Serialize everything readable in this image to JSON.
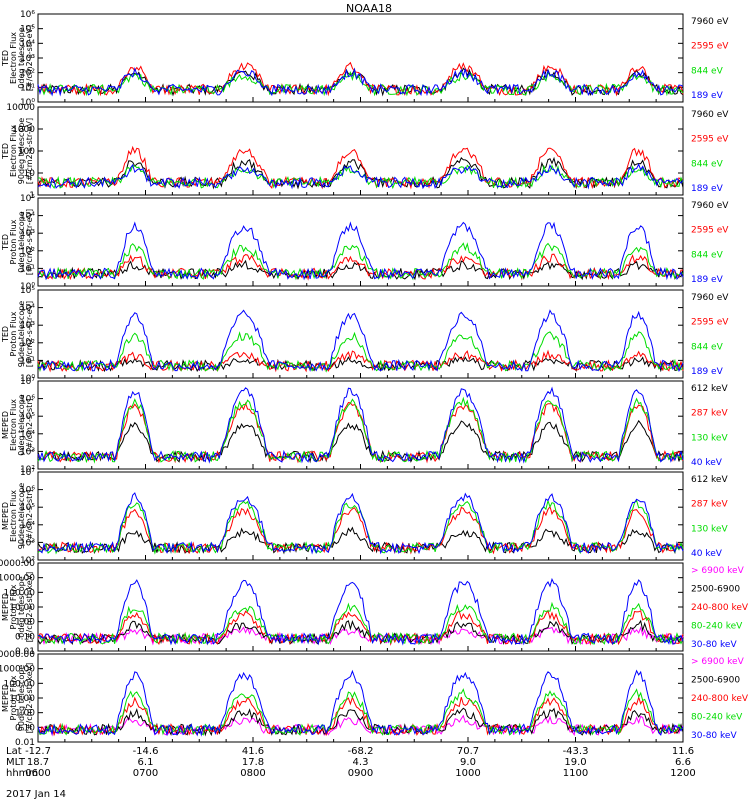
{
  "title": "NOAA18",
  "date_label": "2017 Jan 14",
  "footer": {
    "row_labels": [
      "Lat",
      "MLT",
      "hhmm"
    ],
    "lat": [
      "-12.7",
      "-14.6",
      "41.6",
      "-68.2",
      "70.7",
      "-43.3",
      "11.6"
    ],
    "mlt": [
      "18.7",
      "6.1",
      "17.8",
      "4.3",
      "9.0",
      "19.0",
      "6.6"
    ],
    "hhmm": [
      "0600",
      "0700",
      "0800",
      "0900",
      "1000",
      "1100",
      "1200"
    ]
  },
  "colors": {
    "black": "#000000",
    "red": "#ff0000",
    "green": "#00dd00",
    "blue": "#0000ff",
    "magenta": "#ff00ff"
  },
  "chart_data": [
    {
      "type": "line",
      "ylabel": [
        "TED",
        "Electron Flux",
        "0deg telescope",
        "[#/cm2-s-str-eV]"
      ],
      "ylim": [
        1,
        1000000
      ],
      "yscale": "log",
      "yticks": [
        "10⁰",
        "10¹",
        "10²",
        "10³",
        "10⁴",
        "10⁵",
        "10⁶"
      ],
      "series": [
        {
          "name": "7960 eV",
          "color": "black",
          "peak": 2.0
        },
        {
          "name": "2595 eV",
          "color": "red",
          "peak": 2.4
        },
        {
          "name": "844 eV",
          "color": "green",
          "peak": 1.8
        },
        {
          "name": "189 eV",
          "color": "blue",
          "peak": 2.0
        }
      ]
    },
    {
      "type": "line",
      "ylabel": [
        "TED",
        "Electron Flux",
        "90deg telescope",
        "[#/cm2-s-str-eV]"
      ],
      "ylim": [
        1,
        10000
      ],
      "yscale": "log",
      "yticks": [
        "1",
        "10",
        "100",
        "1000",
        "10000"
      ],
      "series": [
        {
          "name": "7960 eV",
          "color": "black",
          "peak": 1.5
        },
        {
          "name": "2595 eV",
          "color": "red",
          "peak": 2.0
        },
        {
          "name": "844 eV",
          "color": "green",
          "peak": 1.2
        },
        {
          "name": "189 eV",
          "color": "blue",
          "peak": 1.2
        }
      ]
    },
    {
      "type": "line",
      "ylabel": [
        "TED",
        "Proton Flux",
        "0deg telescope",
        "[#/cm2-s-str-eV]"
      ],
      "ylim": [
        1,
        100000
      ],
      "yscale": "log",
      "yticks": [
        "10⁰",
        "10¹",
        "10²",
        "10³",
        "10⁴",
        "10⁵"
      ],
      "series": [
        {
          "name": "7960 eV",
          "color": "black",
          "peak": 1.2
        },
        {
          "name": "2595 eV",
          "color": "red",
          "peak": 1.6
        },
        {
          "name": "844 eV",
          "color": "green",
          "peak": 2.2
        },
        {
          "name": "189 eV",
          "color": "blue",
          "peak": 3.4
        }
      ]
    },
    {
      "type": "line",
      "ylabel": [
        "TED",
        "Proton Flux",
        "90deg telescope",
        "[#/cm2-s-str-eV]"
      ],
      "ylim": [
        1,
        100000
      ],
      "yscale": "log",
      "yticks": [
        "10⁰",
        "10¹",
        "10²",
        "10³",
        "10⁴",
        "10⁵"
      ],
      "series": [
        {
          "name": "7960 eV",
          "color": "black",
          "peak": 1.0
        },
        {
          "name": "2595 eV",
          "color": "red",
          "peak": 1.3
        },
        {
          "name": "844 eV",
          "color": "green",
          "peak": 2.4
        },
        {
          "name": "189 eV",
          "color": "blue",
          "peak": 3.6
        }
      ]
    },
    {
      "type": "line",
      "ylabel": [
        "MEPED",
        "Electron Flux",
        "0deg telescope",
        "[#/cm2-s-str]"
      ],
      "ylim": [
        100,
        10000000
      ],
      "yscale": "log",
      "yticks": [
        "10²",
        "10³",
        "10⁴",
        "10⁵",
        "10⁶",
        "10⁷"
      ],
      "series": [
        {
          "name": "612 keV",
          "color": "black",
          "peak": 4.5
        },
        {
          "name": "287 keV",
          "color": "red",
          "peak": 5.6
        },
        {
          "name": "130 keV",
          "color": "green",
          "peak": 5.8
        },
        {
          "name": "40 keV",
          "color": "blue",
          "peak": 6.4
        }
      ]
    },
    {
      "type": "line",
      "ylabel": [
        "MEPED",
        "Electron Flux",
        "90deg telescope",
        "[#/cm2-s-str]"
      ],
      "ylim": [
        100,
        10000000
      ],
      "yscale": "log",
      "yticks": [
        "10²",
        "10³",
        "10⁴",
        "10⁵",
        "10⁶",
        "10⁷"
      ],
      "series": [
        {
          "name": "612 keV",
          "color": "black",
          "peak": 3.6
        },
        {
          "name": "287 keV",
          "color": "red",
          "peak": 4.8
        },
        {
          "name": "130 keV",
          "color": "green",
          "peak": 5.2
        },
        {
          "name": "40 keV",
          "color": "blue",
          "peak": 5.6
        }
      ]
    },
    {
      "type": "line",
      "ylabel": [
        "MEPED",
        "Proton Flux",
        "0deg telescope",
        "[#/cm2-s-str-keV]"
      ],
      "ylim": [
        0.01,
        10000
      ],
      "yscale": "log",
      "yticks": [
        "0.01",
        "0.10",
        "1.00",
        "10.00",
        "100.00",
        "1000.00",
        "10000.00"
      ],
      "series": [
        {
          "name": "> 6900 keV",
          "color": "magenta",
          "peak": -0.6
        },
        {
          "name": "2500-6900",
          "color": "black",
          "peak": -0.2
        },
        {
          "name": "240-800 keV",
          "color": "red",
          "peak": 0.5
        },
        {
          "name": "80-240 keV",
          "color": "green",
          "peak": 1.0
        },
        {
          "name": "30-80 keV",
          "color": "blue",
          "peak": 2.6
        }
      ]
    },
    {
      "type": "line",
      "ylabel": [
        "MEPED",
        "Proton Flux",
        "90deg telescope",
        "[#/cm2-s-str-keV]"
      ],
      "ylim": [
        0.01,
        10000
      ],
      "yscale": "log",
      "yticks": [
        "0.01",
        "0.10",
        "1.00",
        "10.00",
        "100.00",
        "1000.00",
        "10000.00"
      ],
      "series": [
        {
          "name": "> 6900 keV",
          "color": "magenta",
          "peak": -0.5
        },
        {
          "name": "2500-6900",
          "color": "black",
          "peak": 0.0
        },
        {
          "name": "240-800 keV",
          "color": "red",
          "peak": 0.8
        },
        {
          "name": "80-240 keV",
          "color": "green",
          "peak": 1.3
        },
        {
          "name": "30-80 keV",
          "color": "blue",
          "peak": 2.6
        }
      ]
    }
  ]
}
